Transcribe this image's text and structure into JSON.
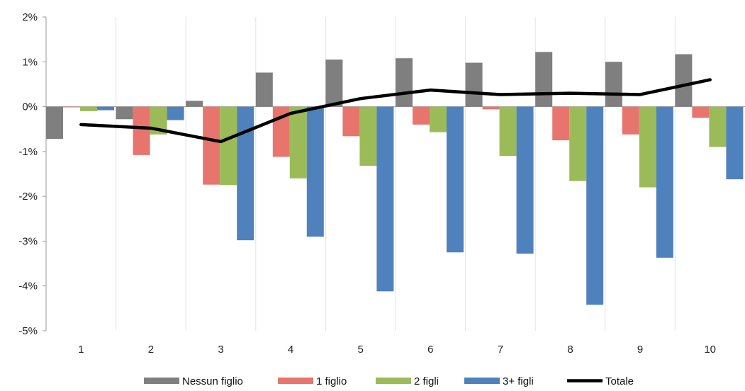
{
  "chart_data": {
    "type": "bar",
    "categories": [
      "1",
      "2",
      "3",
      "4",
      "5",
      "6",
      "7",
      "8",
      "9",
      "10"
    ],
    "series": [
      {
        "name": "Nessun figlio",
        "type": "bar",
        "color": "#7f7f7f",
        "values": [
          -0.72,
          -0.28,
          0.13,
          0.76,
          1.05,
          1.08,
          0.98,
          1.22,
          1.0,
          1.17
        ]
      },
      {
        "name": "1 figlio",
        "type": "bar",
        "color": "#e8756d",
        "values": [
          -0.01,
          -1.08,
          -1.74,
          -1.12,
          -0.66,
          -0.4,
          -0.06,
          -0.75,
          -0.62,
          -0.25
        ]
      },
      {
        "name": "2 figli",
        "type": "bar",
        "color": "#9bbb59",
        "values": [
          -0.1,
          -0.62,
          -1.75,
          -1.6,
          -1.32,
          -0.57,
          -1.1,
          -1.66,
          -1.8,
          -0.9
        ]
      },
      {
        "name": "3+ figli",
        "type": "bar",
        "color": "#4f81bd",
        "values": [
          -0.08,
          -0.3,
          -2.98,
          -2.9,
          -4.12,
          -3.25,
          -3.28,
          -4.42,
          -3.37,
          -1.62
        ]
      },
      {
        "name": "Totale",
        "type": "line",
        "color": "#000000",
        "values": [
          -0.4,
          -0.48,
          -0.78,
          -0.15,
          0.18,
          0.37,
          0.27,
          0.3,
          0.27,
          0.6
        ]
      }
    ],
    "y_ticks": [
      "2%",
      "1%",
      "0%",
      "-1%",
      "-2%",
      "-3%",
      "-4%",
      "-5%"
    ],
    "ylim": [
      -5,
      2
    ],
    "y_unit": "%",
    "grid": "vertical",
    "legend_position": "bottom"
  }
}
